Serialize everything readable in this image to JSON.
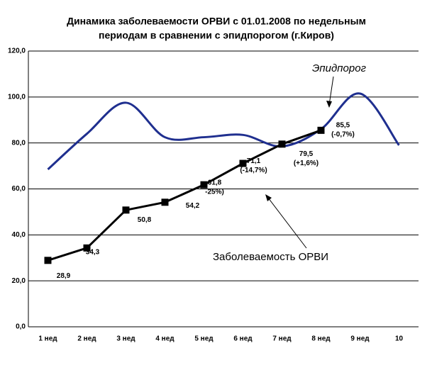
{
  "chart_data": {
    "type": "line",
    "title": [
      "Динамика заболеваемости ОРВИ с 01.01.2008 по недельным",
      "периодам в сравнении с эпидпорогом (г.Киров)"
    ],
    "categories": [
      "1 нед",
      "2 нед",
      "3 нед",
      "4 нед",
      "5 нед",
      "6 нед",
      "7 нед",
      "8 нед",
      "9 нед",
      "10"
    ],
    "series": [
      {
        "name": "Эпидпорог",
        "color": "#1f2f8f",
        "smooth": true,
        "values": [
          68.5,
          84,
          97.5,
          82.5,
          82.5,
          83.5,
          78.5,
          86,
          101.5,
          79
        ]
      },
      {
        "name": "Заболеваемость ОРВИ",
        "color": "#000000",
        "marker": "square",
        "values": [
          28.9,
          34.3,
          50.8,
          54.2,
          61.8,
          71.1,
          79.5,
          85.5,
          null,
          null
        ],
        "value_labels": [
          "28,9",
          "34,3",
          "50,8",
          "54,2",
          "61,8",
          "71,1",
          "79,5",
          "85,5",
          null,
          null
        ],
        "notes": [
          null,
          null,
          null,
          null,
          "-25%)",
          "(-14,7%)",
          "(+1,6%)",
          "(-0,7%)",
          null,
          null
        ]
      }
    ],
    "ylim": [
      0,
      120
    ],
    "yticks": [
      {
        "value": 0,
        "label": "0,0"
      },
      {
        "value": 20,
        "label": "20,0"
      },
      {
        "value": 40,
        "label": "40,0"
      },
      {
        "value": 60,
        "label": "60,0"
      },
      {
        "value": 80,
        "label": "80,0"
      },
      {
        "value": 100,
        "label": "100,0"
      },
      {
        "value": 120,
        "label": "120,0"
      }
    ],
    "grid": true
  }
}
